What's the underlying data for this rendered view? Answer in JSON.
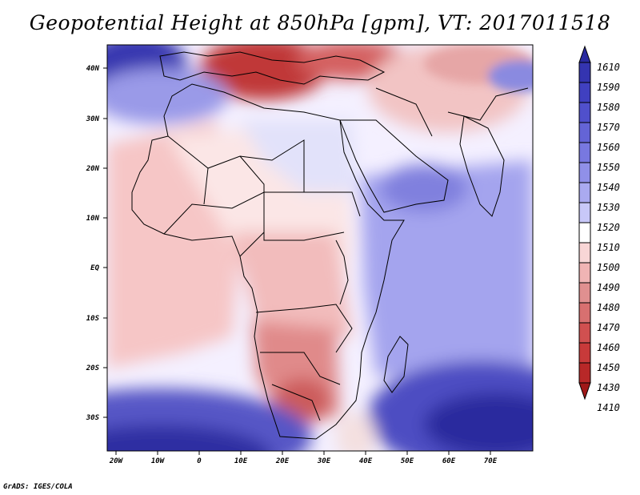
{
  "title": "Geopotential Height at 850hPa [gpm], VT: 2017011518",
  "credit": "GrADS: IGES/COLA",
  "lat_labels": [
    "40N",
    "30N",
    "20N",
    "10N",
    "EQ",
    "10S",
    "20S",
    "30S"
  ],
  "lon_labels": [
    "20W",
    "10W",
    "0",
    "10E",
    "20E",
    "30E",
    "40E",
    "50E",
    "60E",
    "70E"
  ],
  "colorbar": {
    "levels": [
      "1610",
      "1590",
      "1580",
      "1570",
      "1560",
      "1550",
      "1540",
      "1530",
      "1520",
      "1510",
      "1500",
      "1490",
      "1480",
      "1470",
      "1460",
      "1450",
      "1430",
      "1410"
    ],
    "colors": [
      "#2a2aa0",
      "#3434b0",
      "#4040c0",
      "#5050cc",
      "#6464d6",
      "#7878e0",
      "#9090e8",
      "#aaaaf0",
      "#c8c8f8",
      "#ffffff",
      "#f8d6d6",
      "#f0b4b4",
      "#e09090",
      "#d87070",
      "#d05050",
      "#c83a3a",
      "#b82828",
      "#a01818"
    ]
  },
  "map_colors": {
    "ocean_base": "#ececff",
    "deep_blue": "#3a3ab8",
    "mid_blue": "#8c8ce6",
    "light_blue": "#c8c8f8",
    "pale_red": "#f8d6d6",
    "mid_red": "#e6a0a0",
    "deep_red": "#b82828"
  }
}
